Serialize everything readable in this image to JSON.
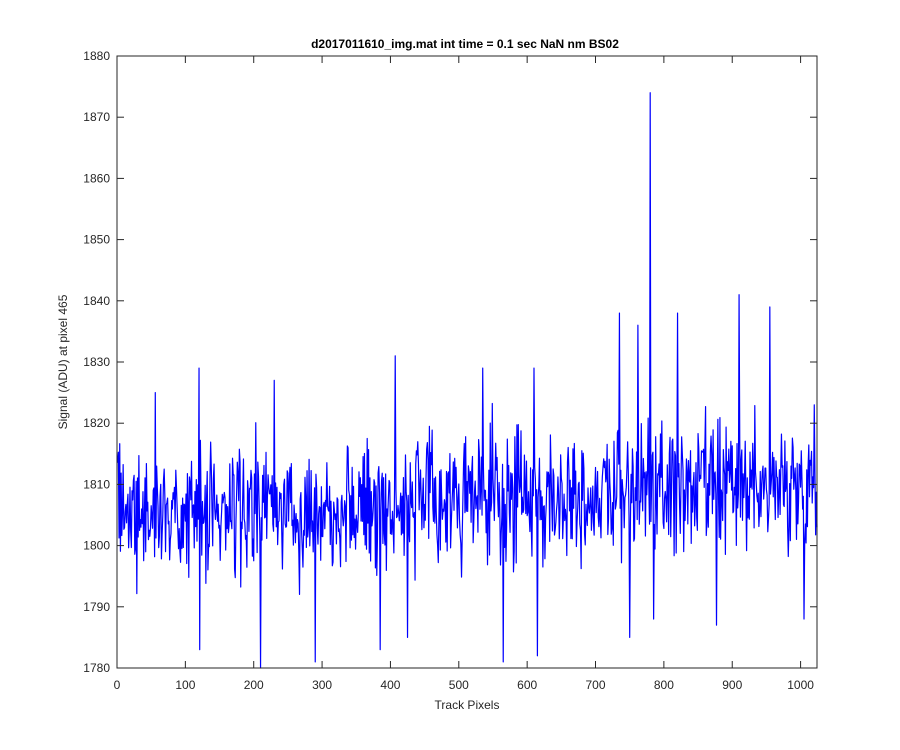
{
  "chart_data": {
    "type": "line",
    "title": "d2017011610_img.mat int time = 0.1 sec  NaN nm BS02",
    "xlabel": "Track Pixels",
    "ylabel": "Signal (ADU) at pixel 465",
    "xlim": [
      0,
      1024
    ],
    "ylim": [
      1780,
      1880
    ],
    "xticks": [
      0,
      100,
      200,
      300,
      400,
      500,
      600,
      700,
      800,
      900,
      1000
    ],
    "yticks": [
      1780,
      1790,
      1800,
      1810,
      1820,
      1830,
      1840,
      1850,
      1860,
      1870,
      1880
    ],
    "grid": false,
    "box": true,
    "series": [
      {
        "color": "#0000ff",
        "x_start": 1,
        "x_step": 1,
        "values_note": "one value per track pixel 1..1024",
        "baseline": 1805,
        "noise_amplitude": 7,
        "drift_end": 1810,
        "seed": 465,
        "spikes": [
          {
            "x": 56,
            "y": 1825
          },
          {
            "x": 120,
            "y": 1829
          },
          {
            "x": 121,
            "y": 1783
          },
          {
            "x": 210,
            "y": 1780
          },
          {
            "x": 230,
            "y": 1827
          },
          {
            "x": 290,
            "y": 1781
          },
          {
            "x": 385,
            "y": 1783
          },
          {
            "x": 407,
            "y": 1831
          },
          {
            "x": 425,
            "y": 1785
          },
          {
            "x": 535,
            "y": 1829
          },
          {
            "x": 565,
            "y": 1781
          },
          {
            "x": 610,
            "y": 1829
          },
          {
            "x": 615,
            "y": 1782
          },
          {
            "x": 735,
            "y": 1838
          },
          {
            "x": 750,
            "y": 1785
          },
          {
            "x": 762,
            "y": 1836
          },
          {
            "x": 780,
            "y": 1874
          },
          {
            "x": 785,
            "y": 1788
          },
          {
            "x": 820,
            "y": 1838
          },
          {
            "x": 877,
            "y": 1787
          },
          {
            "x": 910,
            "y": 1841
          },
          {
            "x": 955,
            "y": 1839
          },
          {
            "x": 1005,
            "y": 1788
          },
          {
            "x": 1020,
            "y": 1823
          }
        ]
      }
    ]
  }
}
